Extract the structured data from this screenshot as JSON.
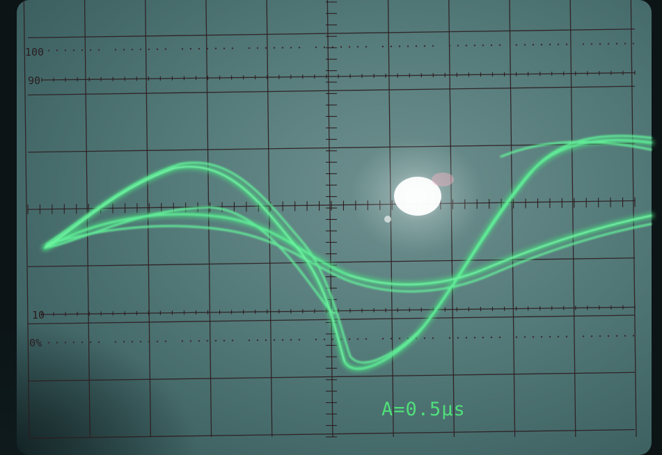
{
  "scale_labels": {
    "pct_100": "100",
    "pct_90": "90",
    "pct_10": "10",
    "pct_0": "0%"
  },
  "readout": {
    "text": "A=0.5μs"
  },
  "colors": {
    "screen": "#4d7272",
    "graticule": "#2c1c1f",
    "trace": "#55f08a",
    "readout": "#4fe07a",
    "bezel": "#0c1416"
  }
}
